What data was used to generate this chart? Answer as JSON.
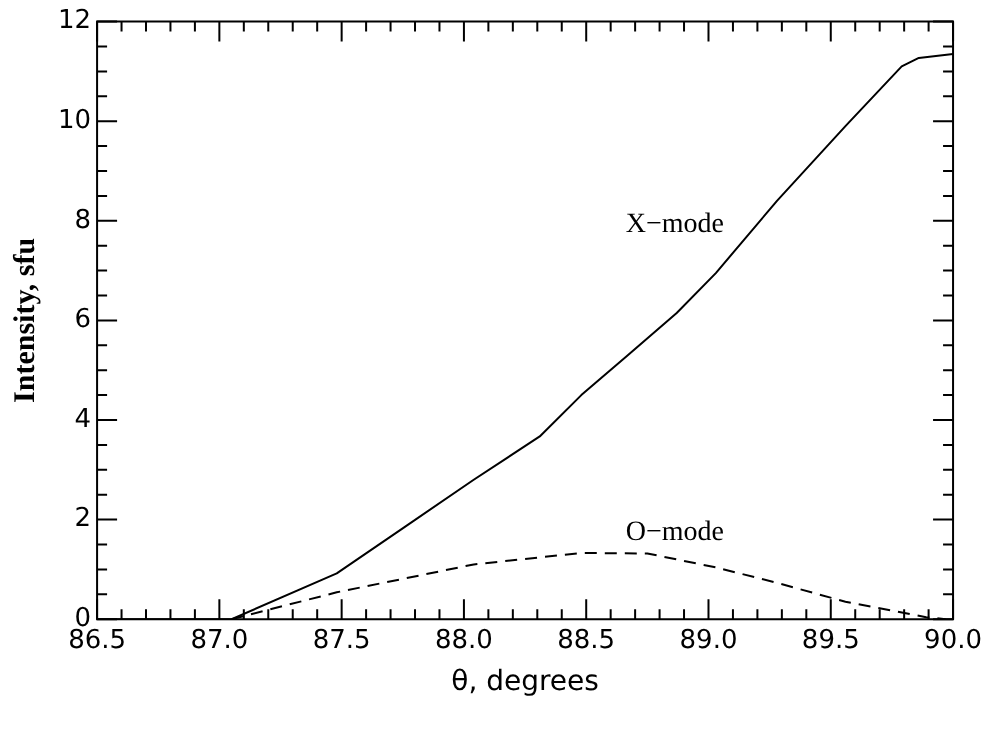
{
  "chart_data": {
    "type": "line",
    "xlabel": "θ, degrees",
    "ylabel": "Intensity, sfu",
    "xlim": [
      86.5,
      90.0
    ],
    "ylim": [
      0,
      12
    ],
    "xticks": [
      86.5,
      {
        "value": 86.6,
        "label": null
      },
      {
        "value": 86.7,
        "label": null
      },
      {
        "value": 86.8,
        "label": null
      },
      {
        "value": 86.9,
        "label": null
      },
      {
        "value": 87.0,
        "label": "87.0"
      },
      {
        "value": 87.1,
        "label": null
      },
      {
        "value": 87.2,
        "label": null
      },
      {
        "value": 87.3,
        "label": null
      },
      {
        "value": 87.4,
        "label": null
      },
      87.5,
      {
        "value": 87.6,
        "label": null
      },
      {
        "value": 87.7,
        "label": null
      },
      {
        "value": 87.8,
        "label": null
      },
      {
        "value": 87.9,
        "label": null
      },
      {
        "value": 88.0,
        "label": "88.0"
      },
      {
        "value": 88.1,
        "label": null
      },
      {
        "value": 88.2,
        "label": null
      },
      {
        "value": 88.3,
        "label": null
      },
      {
        "value": 88.4,
        "label": null
      },
      88.5,
      {
        "value": 88.6,
        "label": null
      },
      {
        "value": 88.7,
        "label": null
      },
      {
        "value": 88.8,
        "label": null
      },
      {
        "value": 88.9,
        "label": null
      },
      {
        "value": 89.0,
        "label": "89.0"
      },
      {
        "value": 89.1,
        "label": null
      },
      {
        "value": 89.2,
        "label": null
      },
      {
        "value": 89.3,
        "label": null
      },
      {
        "value": 89.4,
        "label": null
      },
      89.5,
      {
        "value": 89.6,
        "label": null
      },
      {
        "value": 89.7,
        "label": null
      },
      {
        "value": 89.8,
        "label": null
      },
      {
        "value": 89.9,
        "label": null
      },
      {
        "value": 90.0,
        "label": "90.0"
      }
    ],
    "yticks": [
      0,
      {
        "value": 0.5,
        "label": null
      },
      {
        "value": 1,
        "label": null
      },
      {
        "value": 1.5,
        "label": null
      },
      2,
      {
        "value": 2.5,
        "label": null
      },
      {
        "value": 3,
        "label": null
      },
      {
        "value": 3.5,
        "label": null
      },
      4,
      {
        "value": 4.5,
        "label": null
      },
      {
        "value": 5,
        "label": null
      },
      {
        "value": 5.5,
        "label": null
      },
      6,
      {
        "value": 6.5,
        "label": null
      },
      {
        "value": 7,
        "label": null
      },
      {
        "value": 7.5,
        "label": null
      },
      8,
      {
        "value": 8.5,
        "label": null
      },
      {
        "value": 9,
        "label": null
      },
      {
        "value": 9.5,
        "label": null
      },
      10,
      {
        "value": 10.5,
        "label": null
      },
      {
        "value": 11,
        "label": null
      },
      {
        "value": 11.5,
        "label": null
      },
      12
    ],
    "grid": false,
    "legend": false,
    "marker": "none",
    "series": [
      {
        "color": "#000000",
        "line_style": "solid",
        "x": [
          86.5,
          87.05,
          87.48,
          87.76,
          88.04,
          88.31,
          88.48,
          88.67,
          88.87,
          89.03,
          89.28,
          89.56,
          89.79,
          89.86,
          90.0
        ],
        "values": [
          0,
          0,
          0.92,
          1.86,
          2.8,
          3.67,
          4.5,
          5.3,
          6.15,
          6.95,
          8.4,
          9.9,
          11.1,
          11.27,
          11.35
        ]
      },
      {
        "color": "#000000",
        "line_style": "dashed",
        "x": [
          87.05,
          87.48,
          88.04,
          88.48,
          88.75,
          89.03,
          89.28,
          89.56,
          89.89,
          89.97
        ],
        "values": [
          0,
          0.54,
          1.1,
          1.33,
          1.32,
          1.04,
          0.73,
          0.35,
          0.04,
          0
        ]
      }
    ],
    "annotations": [
      "X−mode",
      "O−mode"
    ]
  }
}
